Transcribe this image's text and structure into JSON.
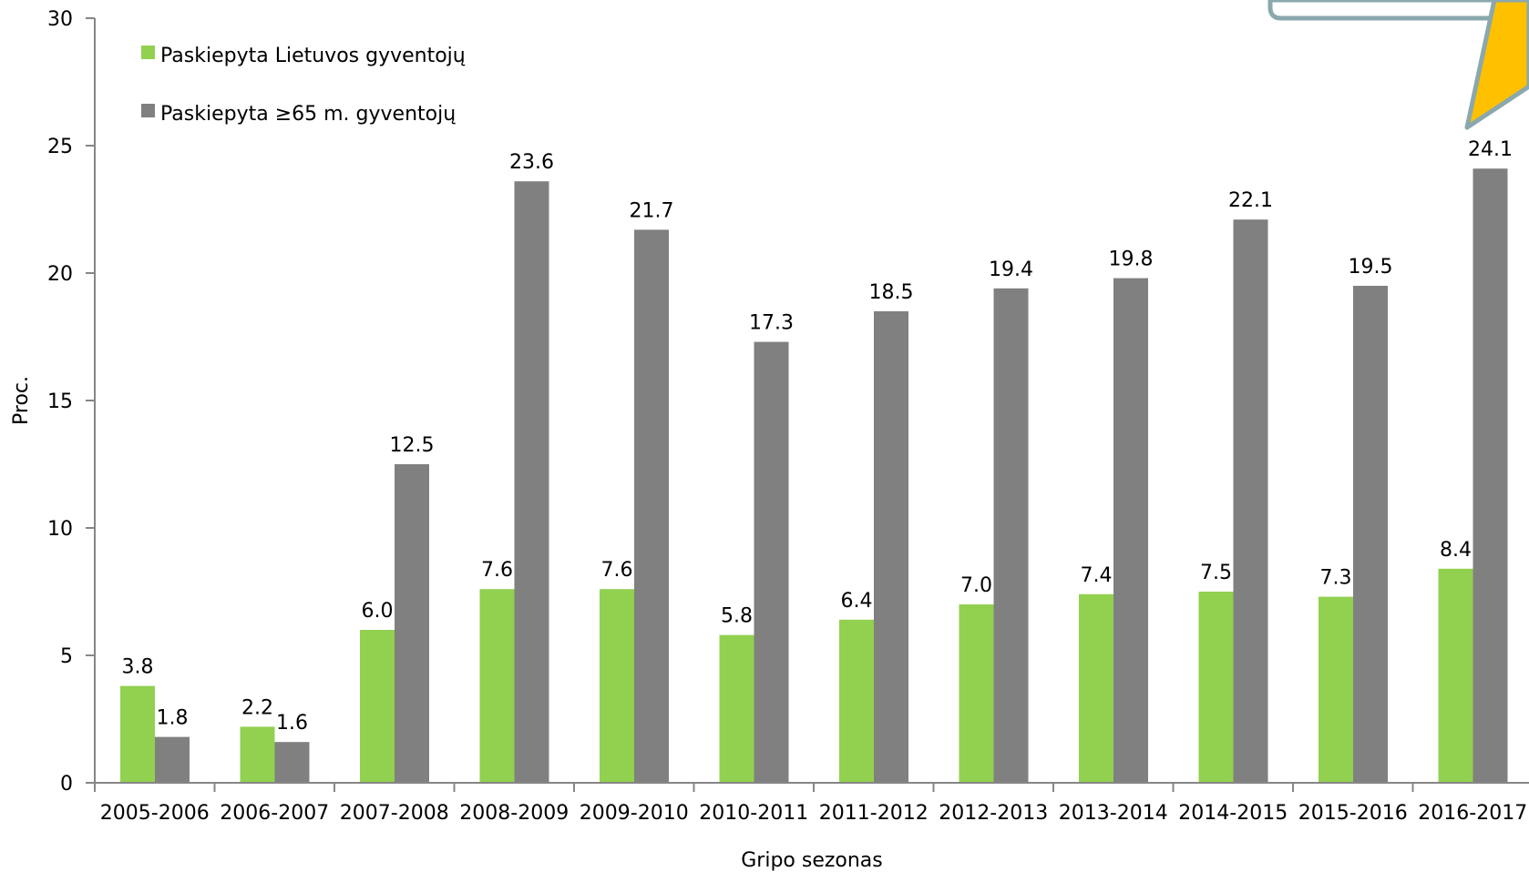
{
  "chart_data": {
    "type": "bar",
    "xlabel": "Gripo sezonas",
    "ylabel": "Proc.",
    "ylim": [
      0,
      30
    ],
    "yticks": [
      0,
      5,
      10,
      15,
      20,
      25,
      30
    ],
    "grid": false,
    "legend_position": "top-left",
    "categories": [
      "2005-2006",
      "2006-2007",
      "2007-2008",
      "2008-2009",
      "2009-2010",
      "2010-2011",
      "2011-2012",
      "2012-2013",
      "2013-2014",
      "2014-2015",
      "2015-2016",
      "2016-2017"
    ],
    "series": [
      {
        "name": "Paskiepyta Lietuvos gyventojų",
        "color": "#92d050",
        "values": [
          3.8,
          2.2,
          6.0,
          7.6,
          7.6,
          5.8,
          6.4,
          7.0,
          7.4,
          7.5,
          7.3,
          8.4
        ],
        "labels": [
          "3.8",
          "2.2",
          "6.0",
          "7.6",
          "7.6",
          "5.8",
          "6.4",
          "7.0",
          "7.4",
          "7.5",
          "7.3",
          "8.4"
        ]
      },
      {
        "name": "Paskiepyta ≥65 m. gyventojų",
        "color": "#808080",
        "values": [
          1.8,
          1.6,
          12.5,
          23.6,
          21.7,
          17.3,
          18.5,
          19.4,
          19.8,
          22.1,
          19.5,
          24.1
        ],
        "labels": [
          "1.8",
          "1.6",
          "12.5",
          "23.6",
          "21.7",
          "17.3",
          "18.5",
          "19.4",
          "19.8",
          "22.1",
          "19.5",
          "24.1"
        ]
      }
    ],
    "callout": {
      "fill": "#ffc000",
      "border": "#8aa8ad",
      "box_border": "#8aa8ad"
    }
  }
}
